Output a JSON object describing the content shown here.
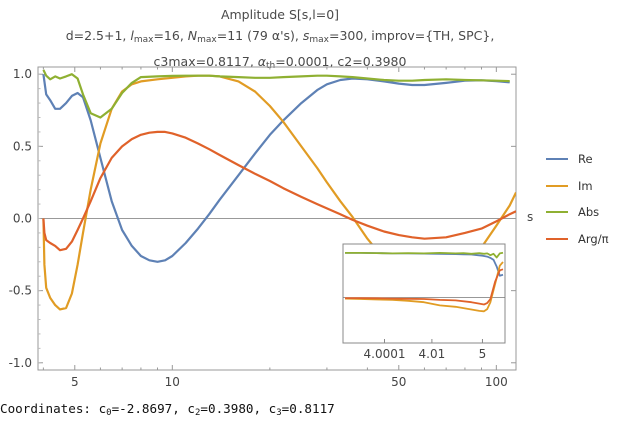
{
  "title": {
    "line1": "Amplitude S[s,l=0]",
    "line2": "d=2.5+1, l_max=16, N_max=11 (79 α's), s_max=300, improv={TH, SPC},",
    "line3": "c3max=0.8117, α_th=0.0001, c2=0.3980"
  },
  "title_parts": {
    "d": "d=2.5+1, ",
    "l": "l",
    "l_sub": "max",
    "l_val": "=16, ",
    "n": "N",
    "n_sub": "max",
    "n_val": "=11 (79 α's), ",
    "s": "s",
    "s_sub": "max",
    "s_val": "=300, improv={TH, SPC},",
    "c3": "c3max=0.8117, ",
    "a": "α",
    "a_sub": "th",
    "a_val": "=0.0001, c2=0.3980"
  },
  "coordinates": {
    "prefix": "Coordinates: c",
    "s0": "0",
    "v0": "=-2.8697, c",
    "s2": "2",
    "v2": "=0.3980, c",
    "s3": "3",
    "v3": "=0.8117"
  },
  "chart_data": [
    {
      "type": "line",
      "x_scale": "log",
      "xlabel": "s",
      "xlim": [
        3.85,
        115
      ],
      "ylim": [
        -1.05,
        1.05
      ],
      "x_ticks": [
        5,
        10,
        50,
        100
      ],
      "y_ticks": [
        1.0,
        0.5,
        0.0,
        -0.5,
        -1.0
      ],
      "y_tick_labels": [
        "1.0",
        "0.5",
        "0.0",
        "-0.5",
        "-1.0"
      ],
      "legend_position": "right",
      "series": [
        {
          "name": "Re",
          "color": "#5e81b5",
          "x": [
            4,
            4.08,
            4.2,
            4.35,
            4.5,
            4.7,
            4.9,
            5.1,
            5.3,
            5.6,
            6,
            6.5,
            7,
            7.5,
            8,
            8.5,
            9,
            9.5,
            10,
            11,
            12,
            13,
            14,
            16,
            18,
            20,
            22,
            25,
            28,
            30,
            33,
            36,
            40,
            45,
            50,
            55,
            60,
            70,
            80,
            90,
            100,
            110
          ],
          "y": [
            1.0,
            0.86,
            0.82,
            0.76,
            0.76,
            0.8,
            0.85,
            0.87,
            0.84,
            0.68,
            0.42,
            0.12,
            -0.08,
            -0.19,
            -0.26,
            -0.29,
            -0.3,
            -0.29,
            -0.26,
            -0.17,
            -0.07,
            0.03,
            0.13,
            0.3,
            0.45,
            0.58,
            0.68,
            0.8,
            0.89,
            0.93,
            0.96,
            0.97,
            0.965,
            0.95,
            0.935,
            0.925,
            0.925,
            0.94,
            0.955,
            0.958,
            0.952,
            0.944
          ]
        },
        {
          "name": "Im",
          "color": "#e19c24",
          "x": [
            4,
            4.03,
            4.08,
            4.2,
            4.35,
            4.5,
            4.7,
            4.9,
            5.1,
            5.3,
            5.6,
            6,
            6.5,
            7,
            7.5,
            8,
            9,
            10,
            11,
            12,
            13,
            14,
            16,
            18,
            20,
            22,
            25,
            28,
            30,
            33,
            36,
            40,
            45,
            50,
            55,
            60,
            70,
            80,
            90,
            100,
            110,
            115
          ],
          "y": [
            0,
            -0.32,
            -0.48,
            -0.55,
            -0.6,
            -0.63,
            -0.62,
            -0.52,
            -0.32,
            -0.1,
            0.2,
            0.52,
            0.76,
            0.88,
            0.93,
            0.95,
            0.965,
            0.975,
            0.985,
            0.99,
            0.99,
            0.985,
            0.95,
            0.88,
            0.78,
            0.67,
            0.5,
            0.35,
            0.25,
            0.12,
            0.01,
            -0.14,
            -0.28,
            -0.38,
            -0.44,
            -0.46,
            -0.44,
            -0.34,
            -0.2,
            -0.05,
            0.09,
            0.18
          ]
        },
        {
          "name": "Abs",
          "color": "#8fb032",
          "x": [
            4,
            4.08,
            4.2,
            4.35,
            4.5,
            4.7,
            4.9,
            5.1,
            5.3,
            5.6,
            6,
            6.5,
            7,
            7.5,
            8,
            9,
            10,
            11,
            12,
            13,
            14,
            16,
            18,
            20,
            22,
            25,
            28,
            30,
            33,
            36,
            40,
            45,
            50,
            55,
            60,
            70,
            80,
            90,
            100,
            110
          ],
          "y": [
            1.03,
            0.99,
            0.965,
            0.985,
            0.97,
            0.985,
            1.0,
            0.97,
            0.86,
            0.73,
            0.7,
            0.76,
            0.87,
            0.94,
            0.98,
            0.985,
            0.988,
            0.99,
            0.99,
            0.99,
            0.985,
            0.98,
            0.975,
            0.975,
            0.98,
            0.985,
            0.99,
            0.99,
            0.985,
            0.98,
            0.97,
            0.96,
            0.955,
            0.955,
            0.96,
            0.965,
            0.96,
            0.958,
            0.955,
            0.952
          ]
        },
        {
          "name": "Arg/π",
          "color": "#e0622a",
          "x": [
            4,
            4.03,
            4.08,
            4.2,
            4.35,
            4.5,
            4.7,
            4.9,
            5.1,
            5.3,
            5.6,
            6,
            6.5,
            7,
            7.5,
            8,
            8.5,
            9,
            9.5,
            10,
            11,
            12,
            13,
            14,
            16,
            18,
            20,
            22,
            25,
            28,
            30,
            33,
            36,
            40,
            45,
            50,
            55,
            60,
            70,
            80,
            90,
            100,
            110,
            115
          ],
          "y": [
            0,
            -0.1,
            -0.15,
            -0.17,
            -0.19,
            -0.22,
            -0.21,
            -0.16,
            -0.08,
            0.0,
            0.12,
            0.28,
            0.42,
            0.5,
            0.55,
            0.58,
            0.595,
            0.6,
            0.6,
            0.59,
            0.56,
            0.52,
            0.48,
            0.44,
            0.37,
            0.31,
            0.26,
            0.21,
            0.15,
            0.1,
            0.07,
            0.03,
            -0.01,
            -0.05,
            -0.09,
            -0.115,
            -0.13,
            -0.14,
            -0.13,
            -0.1,
            -0.07,
            -0.02,
            0.03,
            0.05
          ]
        }
      ]
    },
    {
      "type": "line",
      "role": "inset",
      "x_tick_labels": [
        "4.0001",
        "4.01",
        "5"
      ],
      "series": [
        {
          "name": "Re",
          "color": "#5e81b5",
          "x": [
            0,
            0.1,
            0.2,
            0.3,
            0.4,
            0.5,
            0.6,
            0.7,
            0.75,
            0.8,
            0.84,
            0.87,
            0.9,
            0.92,
            0.94,
            0.96,
            0.98,
            1.0
          ],
          "y": [
            0.98,
            0.98,
            0.975,
            0.97,
            0.97,
            0.965,
            0.96,
            0.955,
            0.95,
            0.945,
            0.93,
            0.92,
            0.9,
            0.87,
            0.83,
            0.68,
            0.48,
            0.5
          ]
        },
        {
          "name": "Im",
          "color": "#e19c24",
          "x": [
            0,
            0.1,
            0.2,
            0.3,
            0.4,
            0.5,
            0.6,
            0.7,
            0.8,
            0.85,
            0.88,
            0.9,
            0.92,
            0.95,
            0.98,
            1.0
          ],
          "y": [
            -0.02,
            -0.03,
            -0.04,
            -0.05,
            -0.07,
            -0.1,
            -0.17,
            -0.2,
            -0.26,
            -0.29,
            -0.3,
            -0.25,
            -0.1,
            0.3,
            0.7,
            0.78
          ]
        },
        {
          "name": "Abs",
          "color": "#8fb032",
          "x": [
            0,
            0.1,
            0.2,
            0.3,
            0.4,
            0.5,
            0.6,
            0.7,
            0.75,
            0.8,
            0.85,
            0.88,
            0.9,
            0.92,
            0.94,
            0.96,
            0.98,
            1.0
          ],
          "y": [
            0.98,
            0.98,
            0.975,
            0.97,
            0.975,
            0.97,
            0.98,
            0.97,
            0.975,
            0.96,
            0.975,
            0.96,
            0.97,
            0.93,
            0.96,
            0.88,
            0.97,
            0.985
          ]
        },
        {
          "name": "Arg/π",
          "color": "#e0622a",
          "x": [
            0,
            0.1,
            0.2,
            0.3,
            0.4,
            0.5,
            0.6,
            0.7,
            0.8,
            0.85,
            0.88,
            0.9,
            0.92,
            0.95,
            0.98,
            1.0
          ],
          "y": [
            -0.01,
            -0.01,
            -0.015,
            -0.02,
            -0.025,
            -0.03,
            -0.05,
            -0.06,
            -0.1,
            -0.13,
            -0.15,
            -0.12,
            -0.03,
            0.35,
            0.6,
            0.62
          ]
        }
      ]
    }
  ]
}
